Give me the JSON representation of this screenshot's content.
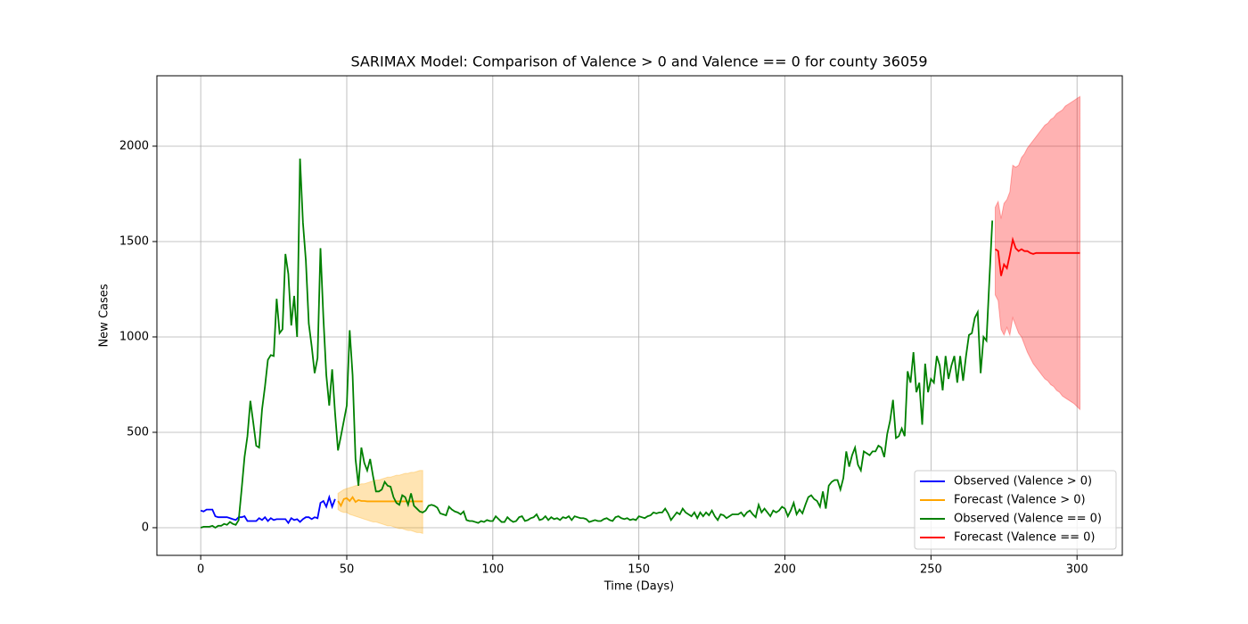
{
  "chart_data": {
    "type": "line",
    "title": "SARIMAX Model: Comparison of Valence > 0 and Valence == 0 for county 36059",
    "x_label": "Time (Days)",
    "y_label": "New Cases",
    "xlim": [
      -15,
      315.5
    ],
    "ylim": [
      -145,
      2369
    ],
    "xticks": [
      0,
      50,
      100,
      150,
      200,
      250,
      300
    ],
    "yticks": [
      0,
      500,
      1000,
      1500,
      2000
    ],
    "grid": true,
    "legend_position": "lower right",
    "series": [
      {
        "name": "Observed (Valence > 0)",
        "color": "#0000ff",
        "x": [
          0,
          1,
          2,
          3,
          4,
          5,
          6,
          7,
          8,
          9,
          10,
          11,
          12,
          13,
          14,
          15,
          16,
          17,
          18,
          19,
          20,
          21,
          22,
          23,
          24,
          25,
          26,
          27,
          28,
          29,
          30,
          31,
          32,
          33,
          34,
          35,
          36,
          37,
          38,
          39,
          40,
          41,
          42,
          43,
          44,
          45,
          46
        ],
        "values": [
          90,
          85,
          95,
          95,
          95,
          60,
          55,
          55,
          55,
          55,
          50,
          45,
          40,
          55,
          55,
          60,
          35,
          35,
          35,
          35,
          50,
          40,
          55,
          35,
          50,
          40,
          45,
          45,
          45,
          45,
          25,
          50,
          40,
          45,
          30,
          45,
          55,
          55,
          45,
          55,
          50,
          130,
          140,
          110,
          160,
          110,
          150
        ]
      },
      {
        "name": "Forecast (Valence > 0)",
        "color": "#ffa500",
        "x": [
          47,
          48,
          49,
          50,
          51,
          52,
          53,
          54,
          55,
          56,
          57,
          58,
          59,
          60,
          61,
          62,
          63,
          64,
          65,
          66,
          67,
          68,
          69,
          70,
          71,
          72,
          73,
          74,
          75,
          76
        ],
        "values": [
          140,
          115,
          150,
          155,
          140,
          160,
          135,
          145,
          140,
          140,
          138,
          138,
          138,
          138,
          138,
          138,
          138,
          138,
          138,
          138,
          138,
          138,
          138,
          138,
          138,
          138,
          138,
          138,
          138,
          138
        ],
        "band": {
          "lower": [
            95,
            85,
            80,
            80,
            70,
            65,
            60,
            55,
            50,
            45,
            40,
            35,
            30,
            30,
            25,
            20,
            15,
            10,
            10,
            5,
            0,
            -5,
            -5,
            -10,
            -15,
            -15,
            -20,
            -25,
            -25,
            -30
          ],
          "upper": [
            180,
            190,
            200,
            205,
            210,
            215,
            220,
            225,
            230,
            230,
            235,
            240,
            245,
            250,
            250,
            255,
            260,
            265,
            265,
            270,
            275,
            275,
            280,
            285,
            285,
            290,
            290,
            295,
            300,
            300
          ]
        }
      },
      {
        "name": "Observed (Valence == 0)",
        "color": "#008000",
        "x": [
          0,
          1,
          2,
          3,
          4,
          5,
          6,
          7,
          8,
          9,
          10,
          11,
          12,
          13,
          14,
          15,
          16,
          17,
          18,
          19,
          20,
          21,
          22,
          23,
          24,
          25,
          26,
          27,
          28,
          29,
          30,
          31,
          32,
          33,
          34,
          35,
          36,
          37,
          38,
          39,
          40,
          41,
          42,
          43,
          44,
          45,
          46,
          47,
          48,
          49,
          50,
          51,
          52,
          53,
          54,
          55,
          56,
          57,
          58,
          59,
          60,
          61,
          62,
          63,
          64,
          65,
          66,
          67,
          68,
          69,
          70,
          71,
          72,
          73,
          74,
          75,
          76,
          77,
          78,
          79,
          80,
          81,
          82,
          83,
          84,
          85,
          86,
          87,
          88,
          89,
          90,
          91,
          92,
          93,
          94,
          95,
          96,
          97,
          98,
          99,
          100,
          101,
          102,
          103,
          104,
          105,
          106,
          107,
          108,
          109,
          110,
          111,
          112,
          113,
          114,
          115,
          116,
          117,
          118,
          119,
          120,
          121,
          122,
          123,
          124,
          125,
          126,
          127,
          128,
          129,
          130,
          131,
          132,
          133,
          134,
          135,
          136,
          137,
          138,
          139,
          140,
          141,
          142,
          143,
          144,
          145,
          146,
          147,
          148,
          149,
          150,
          151,
          152,
          153,
          154,
          155,
          156,
          157,
          158,
          159,
          160,
          161,
          162,
          163,
          164,
          165,
          166,
          167,
          168,
          169,
          170,
          171,
          172,
          173,
          174,
          175,
          176,
          177,
          178,
          179,
          180,
          181,
          182,
          183,
          184,
          185,
          186,
          187,
          188,
          189,
          190,
          191,
          192,
          193,
          194,
          195,
          196,
          197,
          198,
          199,
          200,
          201,
          202,
          203,
          204,
          205,
          206,
          207,
          208,
          209,
          210,
          211,
          212,
          213,
          214,
          215,
          216,
          217,
          218,
          219,
          220,
          221,
          222,
          223,
          224,
          225,
          226,
          227,
          228,
          229,
          230,
          231,
          232,
          233,
          234,
          235,
          236,
          237,
          238,
          239,
          240,
          241,
          242,
          243,
          244,
          245,
          246,
          247,
          248,
          249,
          250,
          251,
          252,
          253,
          254,
          255,
          256,
          257,
          258,
          259,
          260,
          261,
          262,
          263,
          264,
          265,
          266,
          267,
          268,
          269,
          270,
          271
        ],
        "values": [
          0,
          5,
          5,
          5,
          10,
          0,
          10,
          10,
          20,
          15,
          30,
          20,
          15,
          40,
          200,
          370,
          480,
          665,
          550,
          430,
          420,
          620,
          740,
          880,
          905,
          900,
          1200,
          1020,
          1040,
          1435,
          1330,
          1060,
          1215,
          1000,
          1935,
          1600,
          1400,
          1070,
          950,
          810,
          890,
          1465,
          1100,
          800,
          640,
          830,
          600,
          405,
          480,
          560,
          640,
          1035,
          800,
          360,
          220,
          420,
          340,
          300,
          360,
          270,
          190,
          190,
          200,
          240,
          220,
          215,
          160,
          130,
          120,
          170,
          160,
          120,
          180,
          115,
          100,
          85,
          80,
          90,
          115,
          120,
          115,
          105,
          75,
          70,
          65,
          110,
          95,
          85,
          80,
          70,
          85,
          40,
          35,
          35,
          30,
          25,
          35,
          30,
          40,
          35,
          35,
          60,
          45,
          30,
          30,
          55,
          40,
          30,
          35,
          55,
          60,
          35,
          40,
          50,
          55,
          70,
          40,
          45,
          60,
          40,
          55,
          45,
          50,
          40,
          55,
          50,
          60,
          40,
          60,
          55,
          50,
          50,
          45,
          30,
          35,
          40,
          35,
          35,
          45,
          50,
          40,
          35,
          55,
          60,
          50,
          45,
          50,
          40,
          45,
          40,
          60,
          55,
          50,
          60,
          65,
          80,
          75,
          80,
          80,
          100,
          75,
          40,
          60,
          80,
          70,
          100,
          80,
          70,
          60,
          80,
          50,
          80,
          60,
          80,
          65,
          90,
          60,
          40,
          70,
          65,
          50,
          60,
          70,
          70,
          70,
          80,
          60,
          80,
          90,
          70,
          55,
          120,
          80,
          100,
          80,
          60,
          90,
          80,
          90,
          110,
          100,
          60,
          90,
          130,
          70,
          95,
          75,
          120,
          160,
          170,
          150,
          140,
          110,
          190,
          100,
          220,
          240,
          250,
          250,
          200,
          260,
          400,
          320,
          380,
          420,
          330,
          300,
          400,
          390,
          380,
          400,
          400,
          430,
          420,
          370,
          490,
          560,
          670,
          470,
          480,
          520,
          480,
          820,
          760,
          920,
          710,
          760,
          540,
          860,
          710,
          780,
          760,
          900,
          850,
          720,
          900,
          780,
          850,
          900,
          760,
          900,
          770,
          900,
          1010,
          1020,
          1100,
          1130,
          810,
          1000,
          980,
          1300,
          1610
        ]
      },
      {
        "name": "Forecast (Valence == 0)",
        "color": "#ff0000",
        "x": [
          272,
          273,
          274,
          275,
          276,
          277,
          278,
          279,
          280,
          281,
          282,
          283,
          284,
          285,
          286,
          287,
          288,
          289,
          290,
          291,
          292,
          293,
          294,
          295,
          296,
          297,
          298,
          299,
          300,
          301
        ],
        "values": [
          1460,
          1450,
          1320,
          1380,
          1360,
          1430,
          1510,
          1465,
          1450,
          1460,
          1450,
          1450,
          1440,
          1435,
          1440,
          1440,
          1440,
          1440,
          1440,
          1440,
          1440,
          1440,
          1440,
          1440,
          1440,
          1440,
          1440,
          1440,
          1440,
          1440
        ],
        "band": {
          "lower": [
            1220,
            1190,
            1040,
            1010,
            1050,
            1010,
            1100,
            1060,
            1020,
            1000,
            960,
            920,
            890,
            860,
            840,
            820,
            800,
            780,
            770,
            750,
            740,
            720,
            710,
            690,
            680,
            670,
            660,
            650,
            635,
            620
          ],
          "upper": [
            1680,
            1710,
            1620,
            1700,
            1720,
            1760,
            1900,
            1890,
            1900,
            1940,
            1960,
            1990,
            2010,
            2030,
            2050,
            2070,
            2090,
            2110,
            2120,
            2140,
            2150,
            2170,
            2180,
            2190,
            2210,
            2220,
            2230,
            2240,
            2250,
            2260
          ]
        }
      }
    ]
  }
}
